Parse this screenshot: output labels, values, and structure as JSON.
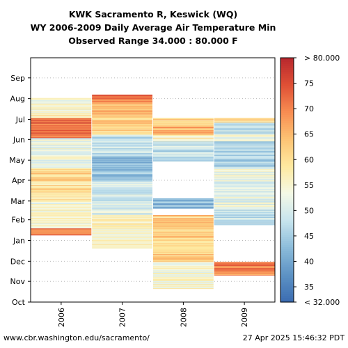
{
  "chart_data": {
    "type": "heatmap",
    "title_lines": [
      "KWK Sacramento R, Keswick (WQ)",
      "WY 2006-2009 Daily Average Air Temperature Min",
      "Observed Range 34.000 : 80.000 F"
    ],
    "x_categories": [
      "2006",
      "2007",
      "2008",
      "2009"
    ],
    "y_month_labels": [
      "Oct",
      "Nov",
      "Dec",
      "Jan",
      "Feb",
      "Mar",
      "Apr",
      "May",
      "Jun",
      "Jul",
      "Aug",
      "Sep"
    ],
    "grid": "dotted",
    "colorbar": {
      "min": 32,
      "max": 80,
      "min_label": "< 32.000",
      "max_label": "> 80.000",
      "ticks": [
        "35",
        "40",
        "45",
        "50",
        "55",
        "60",
        "65",
        "70",
        "75"
      ],
      "colors": [
        "#3b6cb1",
        "#5d92c4",
        "#8cbcda",
        "#c7e4ee",
        "#f4f9e6",
        "#fee9a0",
        "#fdc374",
        "#f88d52",
        "#df4f35",
        "#b7282e"
      ]
    },
    "series": [
      {
        "name": "2006",
        "segments": [
          {
            "start": 245,
            "end": 275,
            "value": 72
          },
          {
            "start": 275,
            "end": 283,
            "value": 58
          },
          {
            "start": 283,
            "end": 305,
            "value": 55
          },
          {
            "start": 200,
            "end": 245,
            "value": 52
          },
          {
            "start": 180,
            "end": 200,
            "value": 62
          },
          {
            "start": 150,
            "end": 180,
            "value": 60
          },
          {
            "start": 110,
            "end": 150,
            "value": 54
          },
          {
            "start": 100,
            "end": 110,
            "value": 70
          }
        ]
      },
      {
        "name": "2007",
        "segments": [
          {
            "start": 300,
            "end": 310,
            "value": 72
          },
          {
            "start": 280,
            "end": 300,
            "value": 66
          },
          {
            "start": 250,
            "end": 280,
            "value": 62
          },
          {
            "start": 220,
            "end": 250,
            "value": 48
          },
          {
            "start": 180,
            "end": 220,
            "value": 44
          },
          {
            "start": 130,
            "end": 180,
            "value": 50
          },
          {
            "start": 80,
            "end": 130,
            "value": 56
          }
        ]
      },
      {
        "name": "2008",
        "segments": [
          {
            "start": 262,
            "end": 275,
            "value": 62
          },
          {
            "start": 250,
            "end": 262,
            "value": 66
          },
          {
            "start": 240,
            "end": 250,
            "value": 58
          },
          {
            "start": 210,
            "end": 240,
            "value": 48
          },
          {
            "start": 140,
            "end": 155,
            "value": 42
          },
          {
            "start": 60,
            "end": 130,
            "value": 62
          },
          {
            "start": 20,
            "end": 60,
            "value": 55
          }
        ]
      },
      {
        "name": "2009",
        "segments": [
          {
            "start": 268,
            "end": 275,
            "value": 62
          },
          {
            "start": 250,
            "end": 268,
            "value": 48
          },
          {
            "start": 240,
            "end": 250,
            "value": 52
          },
          {
            "start": 200,
            "end": 240,
            "value": 46
          },
          {
            "start": 140,
            "end": 200,
            "value": 52
          },
          {
            "start": 115,
            "end": 140,
            "value": 48
          },
          {
            "start": 40,
            "end": 60,
            "value": 70
          }
        ]
      }
    ]
  },
  "footer": {
    "url": "www.cbr.washington.edu/sacramento/",
    "timestamp": "27 Apr 2025 15:46:32 PDT"
  }
}
